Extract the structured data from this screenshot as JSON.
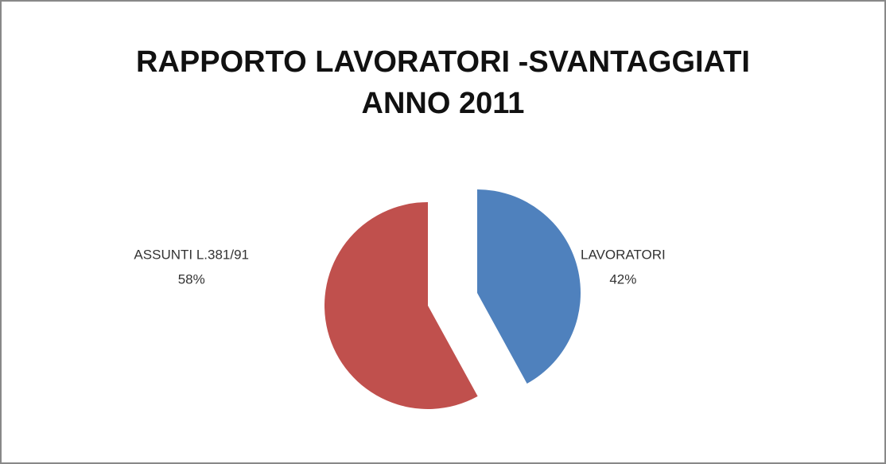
{
  "chart_data": {
    "type": "pie",
    "title": [
      "RAPPORTO LAVORATORI -SVANTAGGIATI",
      "ANNO 2011"
    ],
    "categories": [
      "LAVORATORI",
      "ASSUNTI L.381/91"
    ],
    "values": [
      42,
      58
    ],
    "value_labels": [
      "42%",
      "58%"
    ],
    "colors": [
      "#4f81bd",
      "#c0504d"
    ]
  }
}
